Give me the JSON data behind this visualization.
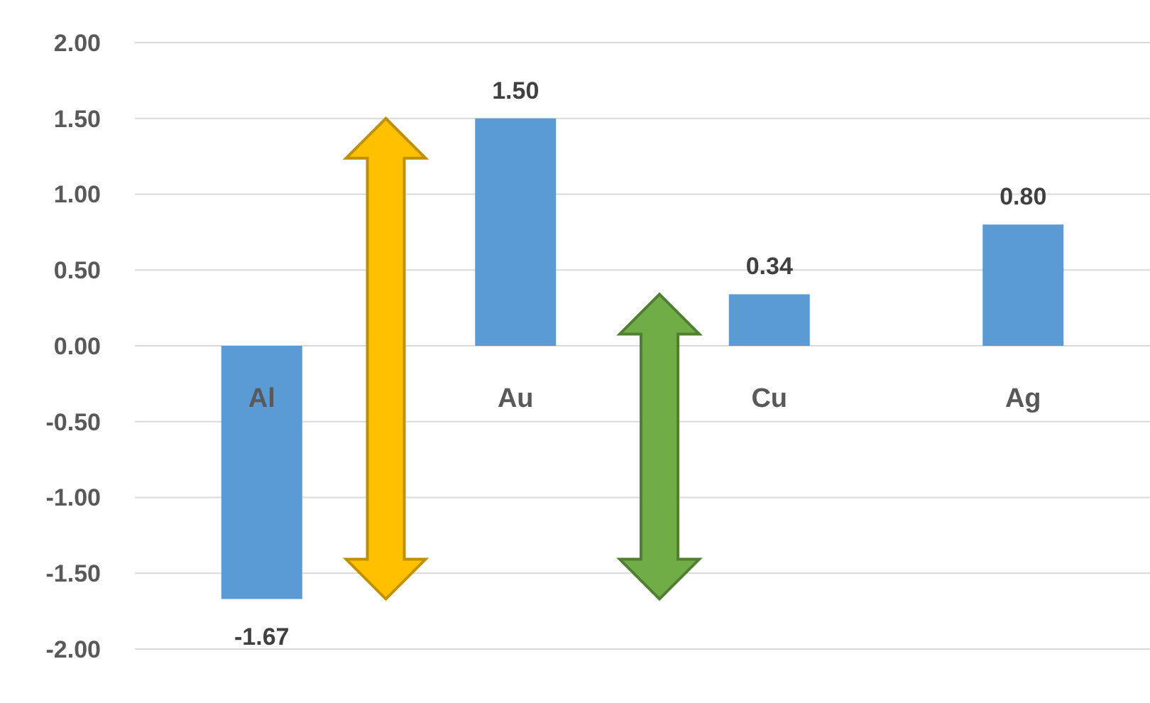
{
  "chart_data": {
    "type": "bar",
    "categories": [
      "Al",
      "Au",
      "Cu",
      "Ag"
    ],
    "values": [
      -1.67,
      1.5,
      0.34,
      0.8
    ],
    "color": "#5b9bd5",
    "value_labels": [
      "-1.67",
      "1.50",
      "0.34",
      "0.80"
    ],
    "ylim": [
      -2,
      2
    ],
    "yticks": [
      {
        "value": 2,
        "label": "2.00"
      },
      {
        "value": 1.5,
        "label": "1.50"
      },
      {
        "value": 1,
        "label": "1.00"
      },
      {
        "value": 0.5,
        "label": "0.50"
      },
      {
        "value": 0,
        "label": "0.00"
      },
      {
        "value": -0.5,
        "label": "-0.50"
      },
      {
        "value": -1,
        "label": "-1.00"
      },
      {
        "value": -1.5,
        "label": "-1.50"
      },
      {
        "value": -2,
        "label": "-2.00"
      }
    ],
    "grid": "y"
  }
}
